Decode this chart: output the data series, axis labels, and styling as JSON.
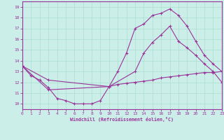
{
  "bg_color": "#cceee8",
  "line_color": "#993399",
  "grid_color": "#aaddcc",
  "xlabel": "Windchill (Refroidissement éolien,°C)",
  "xlabel_color": "#993399",
  "tick_color": "#993399",
  "ylabel_ticks": [
    10,
    11,
    12,
    13,
    14,
    15,
    16,
    17,
    18,
    19
  ],
  "xlabel_ticks": [
    0,
    1,
    2,
    3,
    4,
    5,
    6,
    7,
    8,
    9,
    10,
    11,
    12,
    13,
    14,
    15,
    16,
    17,
    18,
    19,
    20,
    21,
    22,
    23
  ],
  "xmin": 0,
  "xmax": 23,
  "ymin": 9.5,
  "ymax": 19.5,
  "series1_x": [
    0,
    1,
    2,
    3,
    4,
    5,
    6,
    7,
    8,
    9,
    10,
    11,
    12,
    13,
    14,
    15,
    16,
    17,
    18,
    19,
    20,
    21,
    22,
    23
  ],
  "series1_y": [
    13.5,
    12.6,
    12.2,
    11.5,
    10.5,
    10.3,
    10.0,
    10.0,
    10.0,
    10.3,
    11.6,
    11.8,
    11.9,
    12.0,
    12.1,
    12.2,
    12.4,
    12.5,
    12.6,
    12.7,
    12.8,
    12.9,
    12.9,
    13.0
  ],
  "series2_x": [
    0,
    3,
    10,
    11,
    12,
    13,
    14,
    15,
    16,
    17,
    18,
    19,
    20,
    21,
    22,
    23
  ],
  "series2_y": [
    13.5,
    12.2,
    11.6,
    13.0,
    14.7,
    17.0,
    17.4,
    18.2,
    18.4,
    18.8,
    18.2,
    17.2,
    15.8,
    14.5,
    13.7,
    13.0
  ],
  "series3_x": [
    0,
    3,
    10,
    13,
    14,
    15,
    16,
    17,
    18,
    19,
    20,
    21,
    22,
    23
  ],
  "series3_y": [
    13.5,
    11.3,
    11.6,
    13.0,
    14.7,
    15.7,
    16.4,
    17.2,
    15.8,
    15.2,
    14.5,
    13.7,
    13.0,
    12.0
  ]
}
